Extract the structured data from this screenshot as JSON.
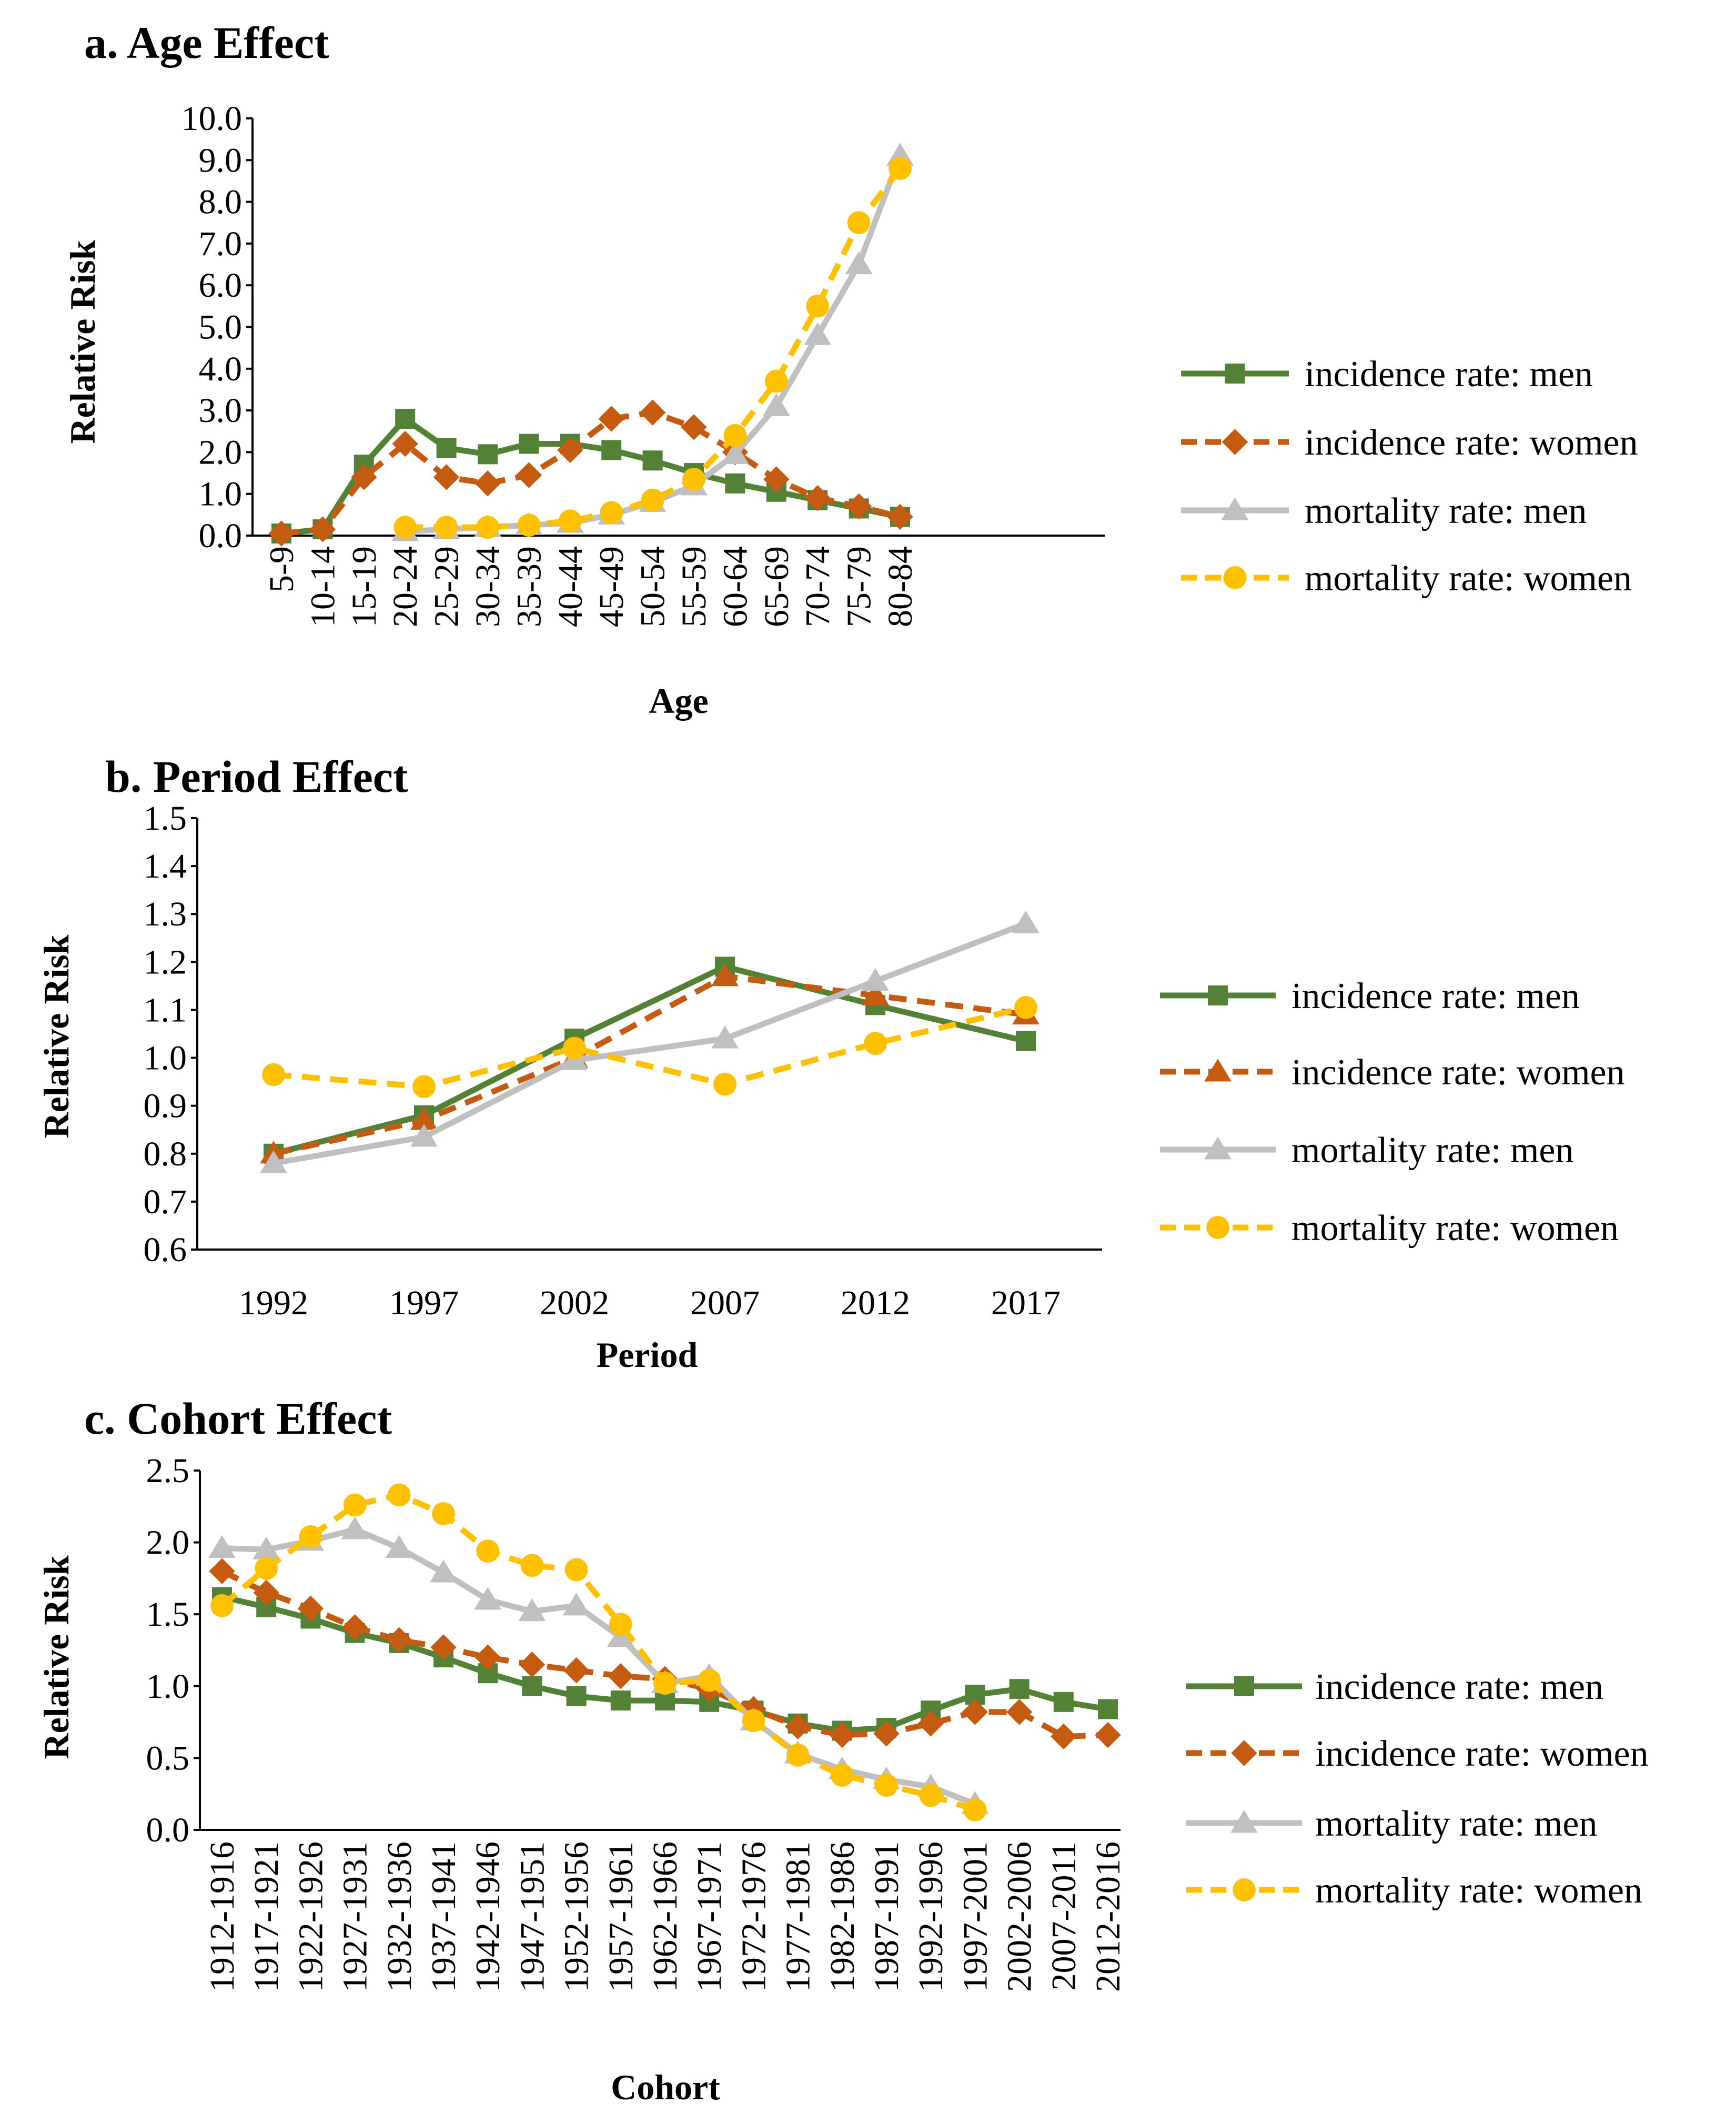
{
  "colors": {
    "inc_men": "#538135",
    "inc_women": "#c55a11",
    "mort_men": "#bfbfbf",
    "mort_women": "#ffc000"
  },
  "chart_data": [
    {
      "id": "age",
      "type": "line",
      "title": "a. Age Effect",
      "xlabel": "Age",
      "ylabel": "Relative Risk",
      "ylim": [
        0,
        10
      ],
      "ytick_step": 1,
      "ytick_decimals": 1,
      "ytick_labels": [
        "0.0",
        "1.0",
        "2.0",
        "3.0",
        "4.0",
        "5.0",
        "6.0",
        "7.0",
        "8.0",
        "9.0",
        "10.0"
      ],
      "legend_position": "right",
      "categories": [
        "5-9",
        "10-14",
        "15-19",
        "20-24",
        "25-29",
        "30-34",
        "35-39",
        "40-44",
        "45-49",
        "50-54",
        "55-59",
        "60-64",
        "65-69",
        "70-74",
        "75-79",
        "80-84"
      ],
      "series": [
        {
          "name": "incidence rate: men",
          "style": "inc_men",
          "marker": "square",
          "dashed": false,
          "values": [
            0.05,
            0.15,
            1.7,
            2.8,
            2.1,
            1.95,
            2.2,
            2.2,
            2.05,
            1.8,
            1.5,
            1.25,
            1.05,
            0.85,
            0.65,
            0.45
          ]
        },
        {
          "name": "incidence rate: women",
          "style": "inc_women",
          "marker": "diamond",
          "dashed": true,
          "values": [
            0.05,
            0.15,
            1.4,
            2.2,
            1.4,
            1.25,
            1.45,
            2.05,
            2.8,
            2.95,
            2.6,
            2.0,
            1.35,
            0.9,
            0.7,
            0.45
          ]
        },
        {
          "name": "mortality rate: men",
          "style": "mort_men",
          "marker": "triangle",
          "dashed": false,
          "values": [
            null,
            null,
            null,
            0.1,
            0.15,
            0.2,
            0.25,
            0.3,
            0.5,
            0.8,
            1.2,
            1.95,
            3.1,
            4.8,
            6.5,
            9.1
          ]
        },
        {
          "name": "mortality rate: women",
          "style": "mort_women",
          "marker": "circle",
          "dashed": true,
          "values": [
            null,
            null,
            null,
            0.2,
            0.2,
            0.2,
            0.25,
            0.35,
            0.55,
            0.85,
            1.35,
            2.4,
            3.7,
            5.5,
            7.5,
            8.8
          ]
        }
      ]
    },
    {
      "id": "period",
      "type": "line",
      "title": "b. Period Effect",
      "xlabel": "Period",
      "ylabel": "Relative Risk",
      "ylim": [
        0.6,
        1.5
      ],
      "ytick_step": 0.1,
      "ytick_decimals": 1,
      "ytick_labels": [
        "0.6",
        "0.7",
        "0.8",
        "0.9",
        "1.0",
        "1.1",
        "1.2",
        "1.3",
        "1.4",
        "1.5"
      ],
      "legend_position": "right",
      "categories": [
        "1992",
        "1997",
        "2002",
        "2007",
        "2012",
        "2017"
      ],
      "series": [
        {
          "name": "incidence rate: men",
          "style": "inc_men",
          "marker": "square",
          "dashed": false,
          "values": [
            0.8,
            0.88,
            1.04,
            1.19,
            1.11,
            1.035
          ]
        },
        {
          "name": "incidence rate: women",
          "style": "inc_women",
          "marker": "triangle",
          "dashed": true,
          "values": [
            0.8,
            0.87,
            1.0,
            1.17,
            1.13,
            1.09
          ]
        },
        {
          "name": "mortality rate: men",
          "style": "mort_men",
          "marker": "triangle",
          "dashed": false,
          "values": [
            0.78,
            0.835,
            0.995,
            1.04,
            1.16,
            1.28
          ]
        },
        {
          "name": "mortality rate: women",
          "style": "mort_women",
          "marker": "circle",
          "dashed": true,
          "values": [
            0.965,
            0.94,
            1.02,
            0.945,
            1.03,
            1.105
          ]
        }
      ]
    },
    {
      "id": "cohort",
      "type": "line",
      "title": "c. Cohort Effect",
      "xlabel": "Cohort",
      "ylabel": "Relative Risk",
      "ylim": [
        0,
        2.5
      ],
      "ytick_step": 0.5,
      "ytick_decimals": 1,
      "ytick_labels": [
        "0.0",
        "0.5",
        "1.0",
        "1.5",
        "2.0",
        "2.5"
      ],
      "legend_position": "right",
      "categories": [
        "1912-1916",
        "1917-1921",
        "1922-1926",
        "1927-1931",
        "1932-1936",
        "1937-1941",
        "1942-1946",
        "1947-1951",
        "1952-1956",
        "1957-1961",
        "1962-1966",
        "1967-1971",
        "1972-1976",
        "1977-1981",
        "1982-1986",
        "1987-1991",
        "1992-1996",
        "1997-2001",
        "2002-2006",
        "2007-2011",
        "2012-2016"
      ],
      "series": [
        {
          "name": "incidence rate: men",
          "style": "inc_men",
          "marker": "square",
          "dashed": false,
          "values": [
            1.62,
            1.55,
            1.47,
            1.37,
            1.3,
            1.2,
            1.09,
            1.0,
            0.93,
            0.9,
            0.9,
            0.89,
            0.83,
            0.74,
            0.69,
            0.71,
            0.83,
            0.94,
            0.98,
            0.89,
            0.84
          ]
        },
        {
          "name": "incidence rate: women",
          "style": "inc_women",
          "marker": "diamond",
          "dashed": true,
          "values": [
            1.8,
            1.65,
            1.54,
            1.41,
            1.32,
            1.27,
            1.2,
            1.15,
            1.11,
            1.07,
            1.05,
            0.98,
            0.84,
            0.72,
            0.66,
            0.67,
            0.74,
            0.82,
            0.82,
            0.65,
            0.66
          ]
        },
        {
          "name": "mortality rate: men",
          "style": "mort_men",
          "marker": "triangle",
          "dashed": false,
          "values": [
            1.96,
            1.95,
            2.01,
            2.09,
            1.96,
            1.79,
            1.6,
            1.52,
            1.56,
            1.34,
            1.02,
            1.07,
            0.76,
            0.53,
            0.42,
            0.35,
            0.3,
            0.18,
            null,
            null,
            null
          ]
        },
        {
          "name": "mortality rate: women",
          "style": "mort_women",
          "marker": "circle",
          "dashed": true,
          "values": [
            1.56,
            1.82,
            2.04,
            2.26,
            2.33,
            2.2,
            1.94,
            1.84,
            1.81,
            1.43,
            1.02,
            1.04,
            0.76,
            0.52,
            0.38,
            0.31,
            0.24,
            0.14,
            null,
            null,
            null
          ]
        }
      ]
    }
  ]
}
